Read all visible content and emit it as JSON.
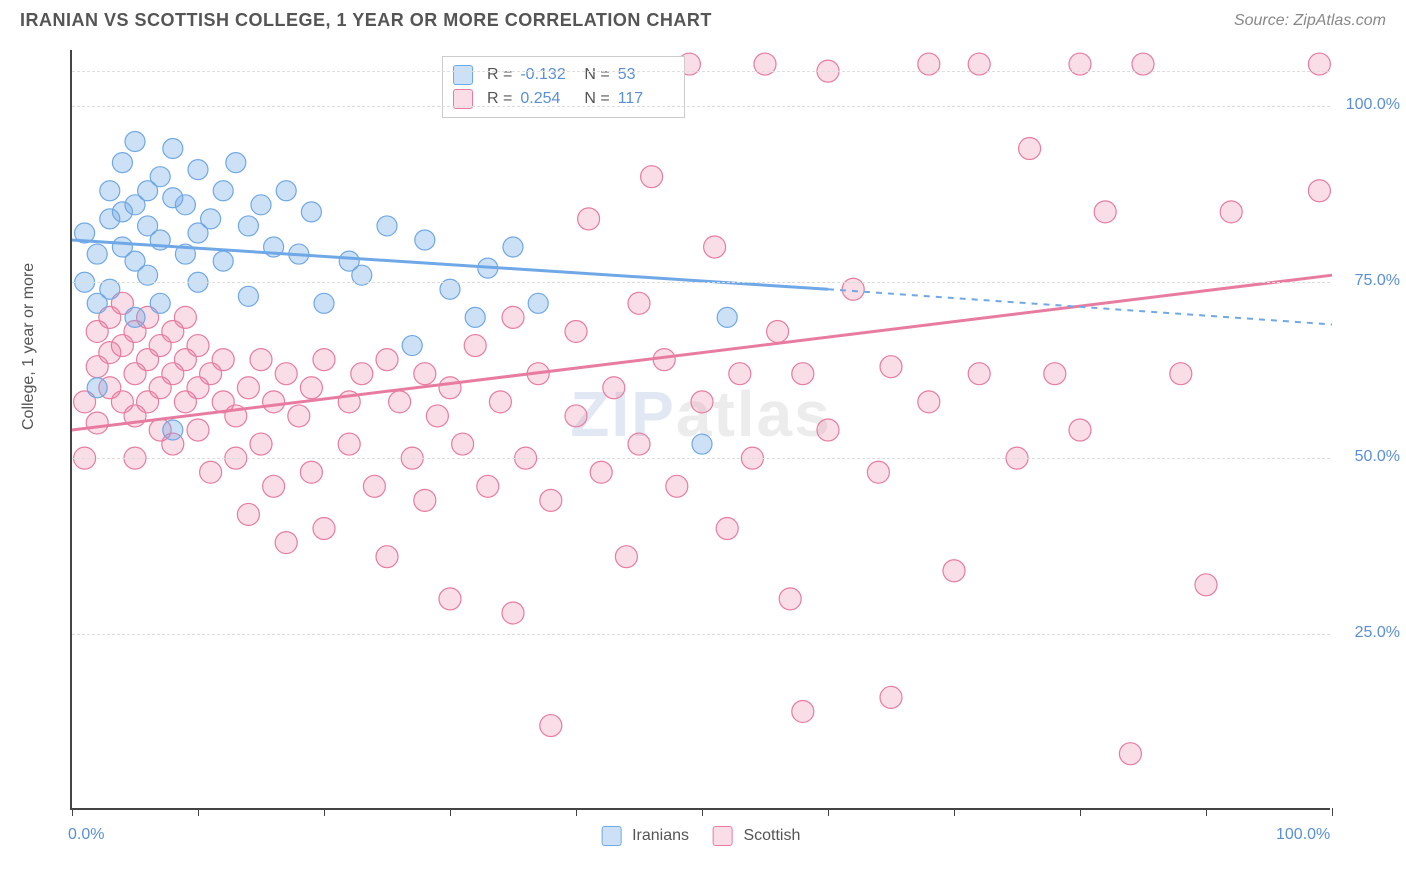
{
  "header": {
    "title": "IRANIAN VS SCOTTISH COLLEGE, 1 YEAR OR MORE CORRELATION CHART",
    "source": "Source: ZipAtlas.com"
  },
  "ylabel": "College, 1 year or more",
  "watermark": {
    "part1": "ZIP",
    "part2": "atlas"
  },
  "axes": {
    "xlim": [
      0,
      100
    ],
    "ylim": [
      0,
      108
    ],
    "x_ticks": [
      0,
      10,
      20,
      30,
      40,
      50,
      60,
      70,
      80,
      90,
      100
    ],
    "x_labeled": [
      0,
      100
    ],
    "y_grid": [
      25,
      50,
      75,
      100,
      105
    ],
    "y_labeled": [
      25,
      50,
      75,
      100
    ],
    "x_label_fmt": "0.0%",
    "y_label_fmt": "0.0%",
    "grid_color": "#dddddd",
    "axis_color": "#444444",
    "tick_label_color": "#5a8fd6"
  },
  "series": {
    "iranians": {
      "label": "Iranians",
      "color": "#6fa8e6",
      "fill": "rgba(111,168,230,0.35)",
      "stroke": "#6fa8e6",
      "R": "-0.132",
      "N": "53",
      "trend": {
        "solid": {
          "x1": 0,
          "y1": 81,
          "x2": 60,
          "y2": 74
        },
        "dashed": {
          "x1": 60,
          "y1": 74,
          "x2": 100,
          "y2": 69
        },
        "line_width": 3
      },
      "marker_r": 10,
      "points": [
        [
          1,
          82
        ],
        [
          1,
          75
        ],
        [
          2,
          72
        ],
        [
          2,
          60
        ],
        [
          2,
          79
        ],
        [
          3,
          88
        ],
        [
          3,
          74
        ],
        [
          3,
          84
        ],
        [
          4,
          92
        ],
        [
          4,
          80
        ],
        [
          4,
          85
        ],
        [
          5,
          78
        ],
        [
          5,
          86
        ],
        [
          5,
          95
        ],
        [
          5,
          70
        ],
        [
          6,
          83
        ],
        [
          6,
          88
        ],
        [
          6,
          76
        ],
        [
          7,
          90
        ],
        [
          7,
          81
        ],
        [
          7,
          72
        ],
        [
          8,
          87
        ],
        [
          8,
          94
        ],
        [
          8,
          54
        ],
        [
          9,
          79
        ],
        [
          9,
          86
        ],
        [
          10,
          82
        ],
        [
          10,
          91
        ],
        [
          10,
          75
        ],
        [
          11,
          84
        ],
        [
          12,
          88
        ],
        [
          12,
          78
        ],
        [
          13,
          92
        ],
        [
          14,
          83
        ],
        [
          14,
          73
        ],
        [
          15,
          86
        ],
        [
          16,
          80
        ],
        [
          17,
          88
        ],
        [
          18,
          79
        ],
        [
          19,
          85
        ],
        [
          20,
          72
        ],
        [
          22,
          78
        ],
        [
          23,
          76
        ],
        [
          25,
          83
        ],
        [
          27,
          66
        ],
        [
          28,
          81
        ],
        [
          30,
          74
        ],
        [
          32,
          70
        ],
        [
          33,
          77
        ],
        [
          35,
          80
        ],
        [
          37,
          72
        ],
        [
          50,
          52
        ],
        [
          52,
          70
        ]
      ]
    },
    "scottish": {
      "label": "Scottish",
      "color": "#e87ca0",
      "fill": "rgba(232,124,160,0.25)",
      "stroke": "#e87ca0",
      "R": "0.254",
      "N": "117",
      "trend": {
        "solid": {
          "x1": 0,
          "y1": 54,
          "x2": 100,
          "y2": 76
        },
        "line_width": 3
      },
      "marker_r": 11,
      "points": [
        [
          1,
          50
        ],
        [
          1,
          58
        ],
        [
          2,
          63
        ],
        [
          2,
          68
        ],
        [
          2,
          55
        ],
        [
          3,
          65
        ],
        [
          3,
          70
        ],
        [
          3,
          60
        ],
        [
          4,
          66
        ],
        [
          4,
          72
        ],
        [
          4,
          58
        ],
        [
          5,
          68
        ],
        [
          5,
          62
        ],
        [
          5,
          56
        ],
        [
          5,
          50
        ],
        [
          6,
          70
        ],
        [
          6,
          64
        ],
        [
          6,
          58
        ],
        [
          7,
          66
        ],
        [
          7,
          60
        ],
        [
          7,
          54
        ],
        [
          8,
          62
        ],
        [
          8,
          68
        ],
        [
          8,
          52
        ],
        [
          9,
          64
        ],
        [
          9,
          58
        ],
        [
          9,
          70
        ],
        [
          10,
          60
        ],
        [
          10,
          66
        ],
        [
          10,
          54
        ],
        [
          11,
          62
        ],
        [
          11,
          48
        ],
        [
          12,
          58
        ],
        [
          12,
          64
        ],
        [
          13,
          56
        ],
        [
          13,
          50
        ],
        [
          14,
          60
        ],
        [
          14,
          42
        ],
        [
          15,
          64
        ],
        [
          15,
          52
        ],
        [
          16,
          58
        ],
        [
          16,
          46
        ],
        [
          17,
          62
        ],
        [
          17,
          38
        ],
        [
          18,
          56
        ],
        [
          19,
          60
        ],
        [
          19,
          48
        ],
        [
          20,
          64
        ],
        [
          20,
          40
        ],
        [
          22,
          58
        ],
        [
          22,
          52
        ],
        [
          23,
          62
        ],
        [
          24,
          46
        ],
        [
          25,
          64
        ],
        [
          25,
          36
        ],
        [
          26,
          58
        ],
        [
          27,
          50
        ],
        [
          28,
          62
        ],
        [
          28,
          44
        ],
        [
          29,
          56
        ],
        [
          30,
          60
        ],
        [
          30,
          30
        ],
        [
          31,
          52
        ],
        [
          32,
          66
        ],
        [
          33,
          46
        ],
        [
          34,
          58
        ],
        [
          35,
          70
        ],
        [
          35,
          28
        ],
        [
          36,
          50
        ],
        [
          37,
          62
        ],
        [
          38,
          44
        ],
        [
          38,
          12
        ],
        [
          40,
          68
        ],
        [
          40,
          56
        ],
        [
          41,
          84
        ],
        [
          42,
          48
        ],
        [
          43,
          60
        ],
        [
          44,
          36
        ],
        [
          45,
          72
        ],
        [
          45,
          52
        ],
        [
          46,
          90
        ],
        [
          47,
          64
        ],
        [
          48,
          46
        ],
        [
          49,
          106
        ],
        [
          50,
          58
        ],
        [
          51,
          80
        ],
        [
          52,
          40
        ],
        [
          53,
          62
        ],
        [
          54,
          50
        ],
        [
          55,
          106
        ],
        [
          56,
          68
        ],
        [
          57,
          30
        ],
        [
          58,
          62
        ],
        [
          58,
          14
        ],
        [
          60,
          54
        ],
        [
          60,
          105
        ],
        [
          62,
          74
        ],
        [
          64,
          48
        ],
        [
          65,
          63
        ],
        [
          65,
          16
        ],
        [
          68,
          58
        ],
        [
          68,
          106
        ],
        [
          70,
          34
        ],
        [
          72,
          62
        ],
        [
          72,
          106
        ],
        [
          75,
          50
        ],
        [
          76,
          94
        ],
        [
          78,
          62
        ],
        [
          80,
          54
        ],
        [
          80,
          106
        ],
        [
          82,
          85
        ],
        [
          84,
          8
        ],
        [
          85,
          106
        ],
        [
          88,
          62
        ],
        [
          90,
          32
        ],
        [
          92,
          85
        ],
        [
          99,
          88
        ],
        [
          99,
          106
        ]
      ]
    }
  },
  "bottom_legend": [
    {
      "key": "iranians",
      "label": "Iranians"
    },
    {
      "key": "scottish",
      "label": "Scottish"
    }
  ],
  "stats_legend_order": [
    "iranians",
    "scottish"
  ]
}
